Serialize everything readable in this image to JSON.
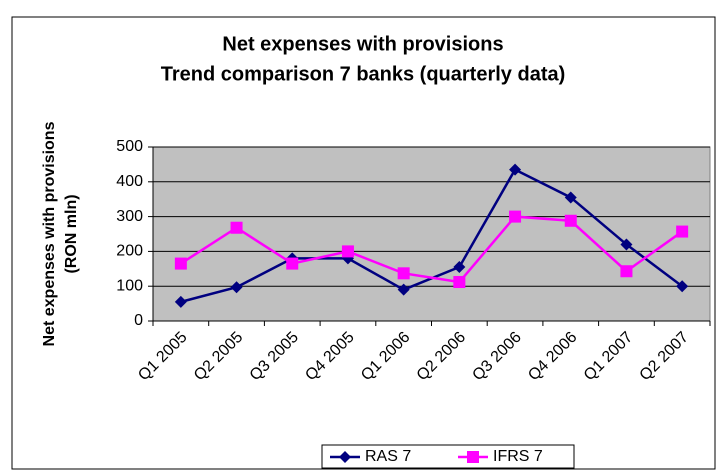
{
  "chart_data": {
    "type": "line",
    "title": "Net expenses with provisions",
    "subtitle": "Trend comparison 7 banks (quarterly data)",
    "ylabel": [
      "Net expenses with provisions",
      "(RON mln)"
    ],
    "categories": [
      "Q1 2005",
      "Q2 2005",
      "Q3 2005",
      "Q4 2005",
      "Q1 2006",
      "Q2 2006",
      "Q3 2006",
      "Q4 2006",
      "Q1 2007",
      "Q2 2007"
    ],
    "series": [
      {
        "name": "RAS 7",
        "color": "#000080",
        "marker": "diamond",
        "values": [
          55,
          97,
          180,
          180,
          90,
          155,
          435,
          355,
          220,
          100
        ]
      },
      {
        "name": "IFRS 7",
        "color": "#ff00ff",
        "marker": "square",
        "values": [
          165,
          268,
          165,
          200,
          137,
          112,
          300,
          288,
          143,
          257
        ]
      }
    ],
    "ylim": [
      0,
      500
    ],
    "yticks": [
      0,
      100,
      200,
      300,
      400,
      500
    ],
    "grid": true,
    "legend": "bottom"
  }
}
